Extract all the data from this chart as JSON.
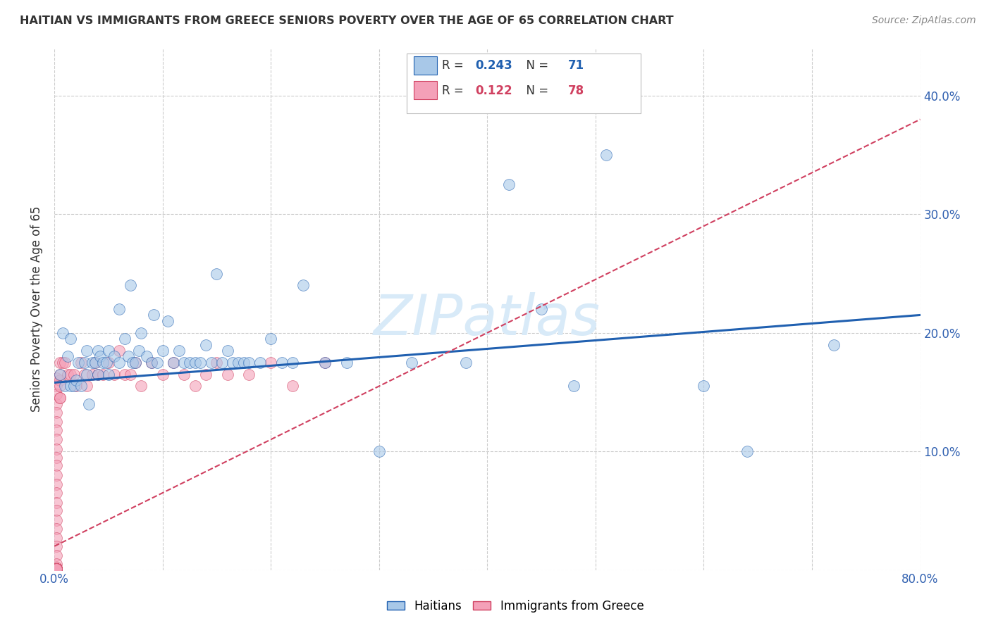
{
  "title": "HAITIAN VS IMMIGRANTS FROM GREECE SENIORS POVERTY OVER THE AGE OF 65 CORRELATION CHART",
  "source": "Source: ZipAtlas.com",
  "ylabel": "Seniors Poverty Over the Age of 65",
  "R_haitian": 0.243,
  "N_haitian": 71,
  "R_greece": 0.122,
  "N_greece": 78,
  "xlim": [
    0.0,
    0.8
  ],
  "ylim": [
    0.0,
    0.44
  ],
  "xticks": [
    0.0,
    0.1,
    0.2,
    0.3,
    0.4,
    0.5,
    0.6,
    0.7,
    0.8
  ],
  "yticks": [
    0.0,
    0.1,
    0.2,
    0.3,
    0.4
  ],
  "color_haitian": "#a8c8e8",
  "color_greece": "#f4a0b8",
  "line_color_haitian": "#2060b0",
  "line_color_greece": "#d04060",
  "watermark_color": "#d8eaf8",
  "haitian_x": [
    0.005,
    0.008,
    0.01,
    0.012,
    0.015,
    0.015,
    0.018,
    0.02,
    0.022,
    0.025,
    0.028,
    0.03,
    0.03,
    0.032,
    0.035,
    0.038,
    0.04,
    0.04,
    0.042,
    0.045,
    0.048,
    0.05,
    0.05,
    0.055,
    0.06,
    0.06,
    0.065,
    0.068,
    0.07,
    0.072,
    0.075,
    0.078,
    0.08,
    0.085,
    0.09,
    0.092,
    0.095,
    0.1,
    0.105,
    0.11,
    0.115,
    0.12,
    0.125,
    0.13,
    0.135,
    0.14,
    0.145,
    0.15,
    0.155,
    0.16,
    0.165,
    0.17,
    0.175,
    0.18,
    0.19,
    0.2,
    0.21,
    0.22,
    0.23,
    0.25,
    0.27,
    0.3,
    0.33,
    0.38,
    0.42,
    0.45,
    0.48,
    0.51,
    0.6,
    0.64,
    0.72
  ],
  "haitian_y": [
    0.165,
    0.2,
    0.155,
    0.18,
    0.155,
    0.195,
    0.155,
    0.16,
    0.175,
    0.155,
    0.175,
    0.165,
    0.185,
    0.14,
    0.175,
    0.175,
    0.185,
    0.165,
    0.18,
    0.175,
    0.175,
    0.185,
    0.165,
    0.18,
    0.175,
    0.22,
    0.195,
    0.18,
    0.24,
    0.175,
    0.175,
    0.185,
    0.2,
    0.18,
    0.175,
    0.215,
    0.175,
    0.185,
    0.21,
    0.175,
    0.185,
    0.175,
    0.175,
    0.175,
    0.175,
    0.19,
    0.175,
    0.25,
    0.175,
    0.185,
    0.175,
    0.175,
    0.175,
    0.175,
    0.175,
    0.195,
    0.175,
    0.175,
    0.24,
    0.175,
    0.175,
    0.1,
    0.175,
    0.175,
    0.325,
    0.22,
    0.155,
    0.35,
    0.155,
    0.1,
    0.19
  ],
  "greece_x": [
    0.002,
    0.002,
    0.002,
    0.002,
    0.002,
    0.002,
    0.002,
    0.002,
    0.002,
    0.002,
    0.002,
    0.002,
    0.002,
    0.002,
    0.002,
    0.002,
    0.002,
    0.002,
    0.002,
    0.002,
    0.002,
    0.002,
    0.002,
    0.002,
    0.002,
    0.002,
    0.002,
    0.002,
    0.002,
    0.002,
    0.002,
    0.002,
    0.002,
    0.002,
    0.002,
    0.002,
    0.002,
    0.002,
    0.002,
    0.002,
    0.005,
    0.005,
    0.005,
    0.005,
    0.005,
    0.005,
    0.008,
    0.01,
    0.012,
    0.015,
    0.018,
    0.02,
    0.025,
    0.028,
    0.03,
    0.035,
    0.038,
    0.04,
    0.045,
    0.05,
    0.055,
    0.06,
    0.065,
    0.07,
    0.075,
    0.08,
    0.09,
    0.1,
    0.11,
    0.12,
    0.13,
    0.14,
    0.15,
    0.16,
    0.18,
    0.2,
    0.22,
    0.25
  ],
  "greece_y": [
    0.162,
    0.155,
    0.148,
    0.14,
    0.133,
    0.125,
    0.118,
    0.11,
    0.102,
    0.095,
    0.088,
    0.08,
    0.072,
    0.065,
    0.057,
    0.05,
    0.042,
    0.035,
    0.027,
    0.02,
    0.012,
    0.005,
    0.002,
    0.001,
    0.001,
    0.001,
    0.001,
    0.001,
    0.001,
    0.001,
    0.001,
    0.001,
    0.001,
    0.001,
    0.001,
    0.001,
    0.001,
    0.001,
    0.001,
    0.001,
    0.16,
    0.175,
    0.155,
    0.145,
    0.165,
    0.145,
    0.175,
    0.175,
    0.165,
    0.165,
    0.165,
    0.155,
    0.175,
    0.165,
    0.155,
    0.165,
    0.175,
    0.165,
    0.165,
    0.175,
    0.165,
    0.185,
    0.165,
    0.165,
    0.175,
    0.155,
    0.175,
    0.165,
    0.175,
    0.165,
    0.155,
    0.165,
    0.175,
    0.165,
    0.165,
    0.175,
    0.155,
    0.175
  ],
  "trend_haitian_x0": 0.0,
  "trend_haitian_y0": 0.158,
  "trend_haitian_x1": 0.8,
  "trend_haitian_y1": 0.215,
  "trend_greece_x0": 0.0,
  "trend_greece_y0": 0.02,
  "trend_greece_x1": 0.8,
  "trend_greece_y1": 0.38
}
